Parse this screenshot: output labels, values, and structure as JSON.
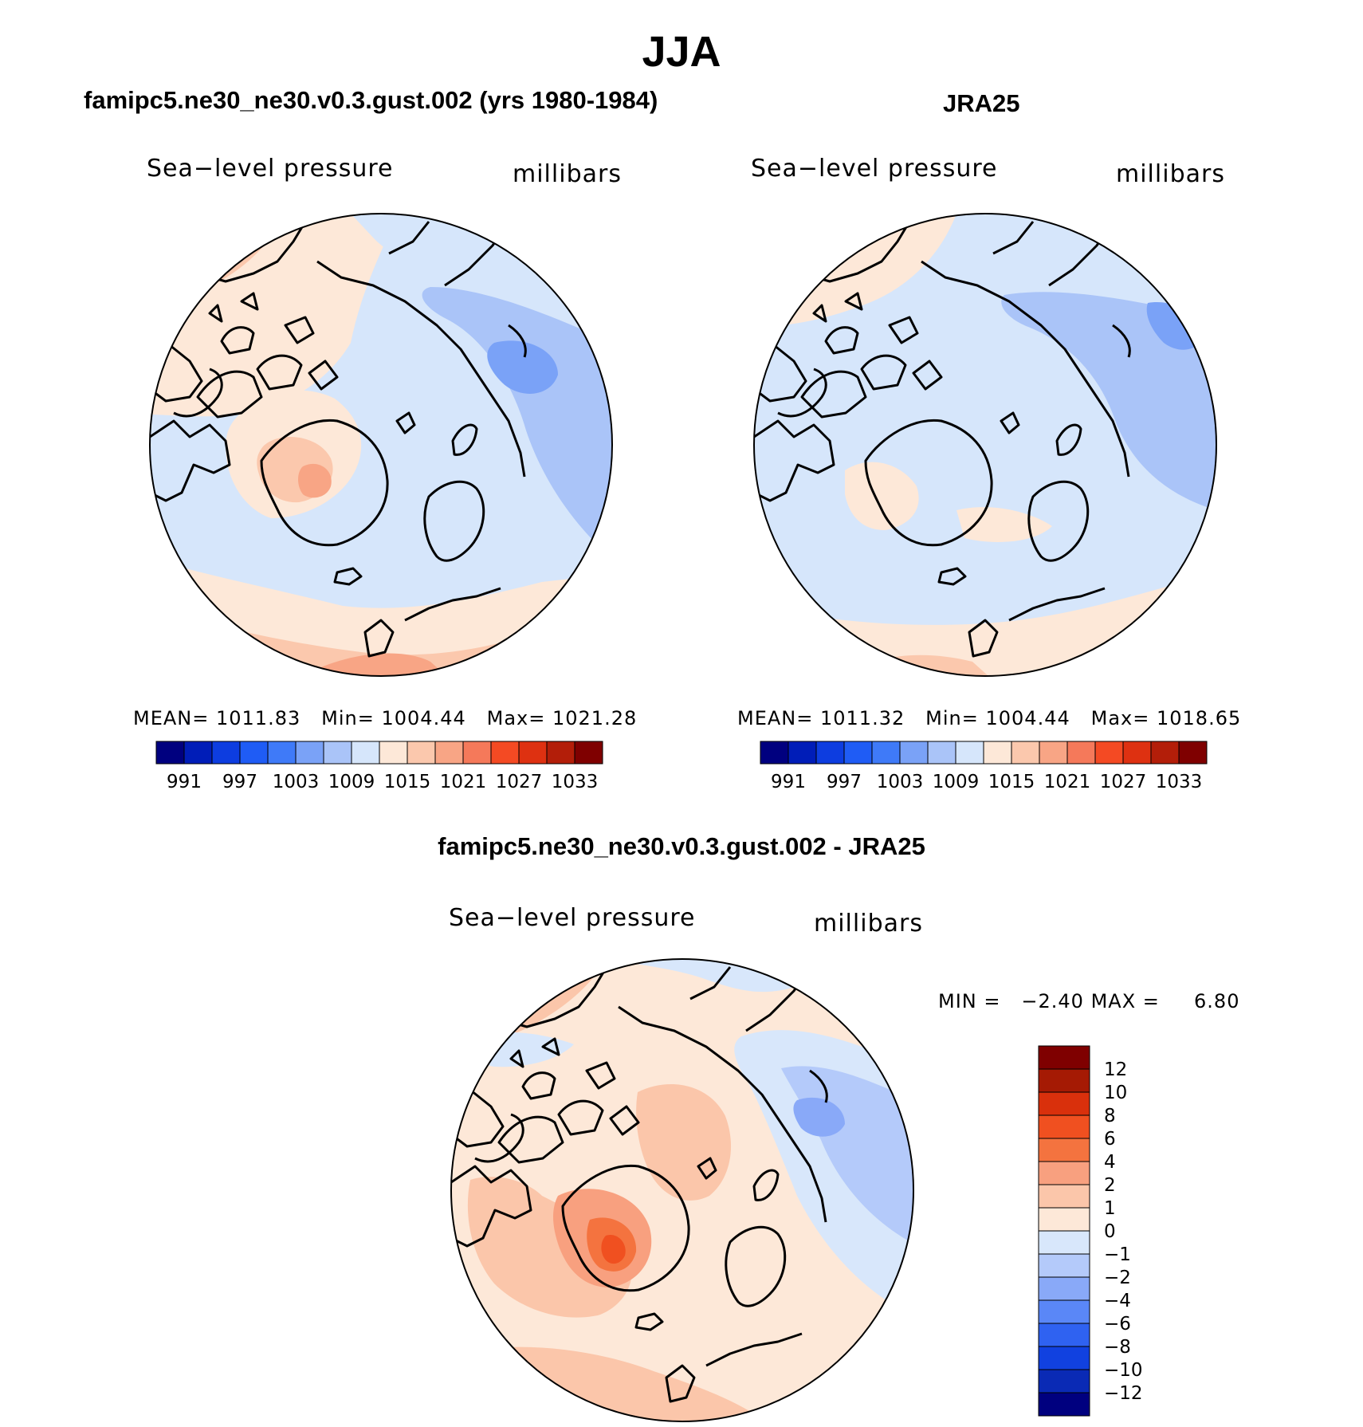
{
  "page": {
    "title": "JJA"
  },
  "colors": {
    "absolute_scale": [
      "#00007f",
      "#001db8",
      "#0d3de0",
      "#1f5cf5",
      "#3f7af8",
      "#7aa2f7",
      "#aac4f8",
      "#d6e6fb",
      "#fde8d8",
      "#fbc8ad",
      "#f8a585",
      "#f5795a",
      "#f44a23",
      "#de3111",
      "#b31e09",
      "#7f0000"
    ],
    "difference_scale": [
      "#00007f",
      "#0a2ab5",
      "#1141e0",
      "#2f62f1",
      "#5a87f7",
      "#89a9f8",
      "#b4cafa",
      "#d8e7fb",
      "#fde8d8",
      "#fbc6aa",
      "#f8a07f",
      "#f4733f",
      "#f05020",
      "#d9300c",
      "#a51a04",
      "#7f0000"
    ]
  },
  "panels": [
    {
      "id": "model",
      "title": "famipc5.ne30_ne30.v0.3.gust.002 (yrs 1980-1984)",
      "variable": "Sea−level pressure",
      "units": "millibars",
      "stats": {
        "mean_label": "MEAN=",
        "mean": "1011.83",
        "min_label": "Min=",
        "min": "1004.44",
        "max_label": "Max=",
        "max": "1021.28"
      },
      "colorbar_ticks": [
        "991",
        "997",
        "1003",
        "1009",
        "1015",
        "1021",
        "1027",
        "1033"
      ]
    },
    {
      "id": "obs",
      "title": "JRA25",
      "variable": "Sea−level pressure",
      "units": "millibars",
      "stats": {
        "mean_label": "MEAN=",
        "mean": "1011.32",
        "min_label": "Min=",
        "min": "1004.44",
        "max_label": "Max=",
        "max": "1018.65"
      },
      "colorbar_ticks": [
        "991",
        "997",
        "1003",
        "1009",
        "1015",
        "1021",
        "1027",
        "1033"
      ]
    },
    {
      "id": "diff",
      "title": "famipc5.ne30_ne30.v0.3.gust.002 - JRA25",
      "variable": "Sea−level pressure",
      "units": "millibars",
      "stats": {
        "min_label": "MIN =",
        "min": "−2.40",
        "max_label": "MAX =",
        "max": "6.80"
      },
      "colorbar_ticks": [
        "12",
        "10",
        "8",
        "6",
        "4",
        "2",
        "1",
        "0",
        "−1",
        "−2",
        "−4",
        "−6",
        "−8",
        "−10",
        "−12"
      ]
    }
  ]
}
